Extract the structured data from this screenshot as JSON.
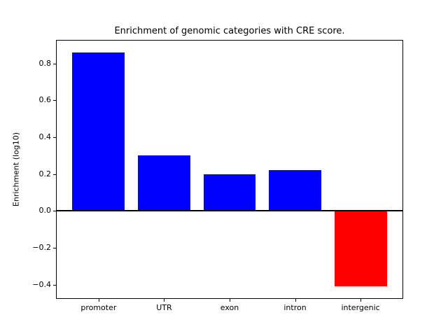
{
  "chart_data": {
    "type": "bar",
    "title": "Enrichment of genomic categories with CRE score.",
    "xlabel": "",
    "ylabel": "Enrichment (log10)",
    "categories": [
      "promoter",
      "UTR",
      "exon",
      "intron",
      "intergenic"
    ],
    "values": [
      0.86,
      0.3,
      0.2,
      0.22,
      -0.41
    ],
    "bar_colors": [
      "#0000ff",
      "#0000ff",
      "#0000ff",
      "#0000ff",
      "#ff0000"
    ],
    "positive_color": "#0000ff",
    "negative_color": "#ff0000",
    "yticks": [
      -0.4,
      -0.2,
      0.0,
      0.2,
      0.4,
      0.6,
      0.8
    ],
    "ylim": [
      -0.474,
      0.924
    ],
    "xlim": [
      -0.64,
      4.64
    ],
    "bar_width": 0.8,
    "zero_line": true,
    "grid": false,
    "legend": null,
    "background": "#ffffff",
    "axis_color": "#000000"
  }
}
